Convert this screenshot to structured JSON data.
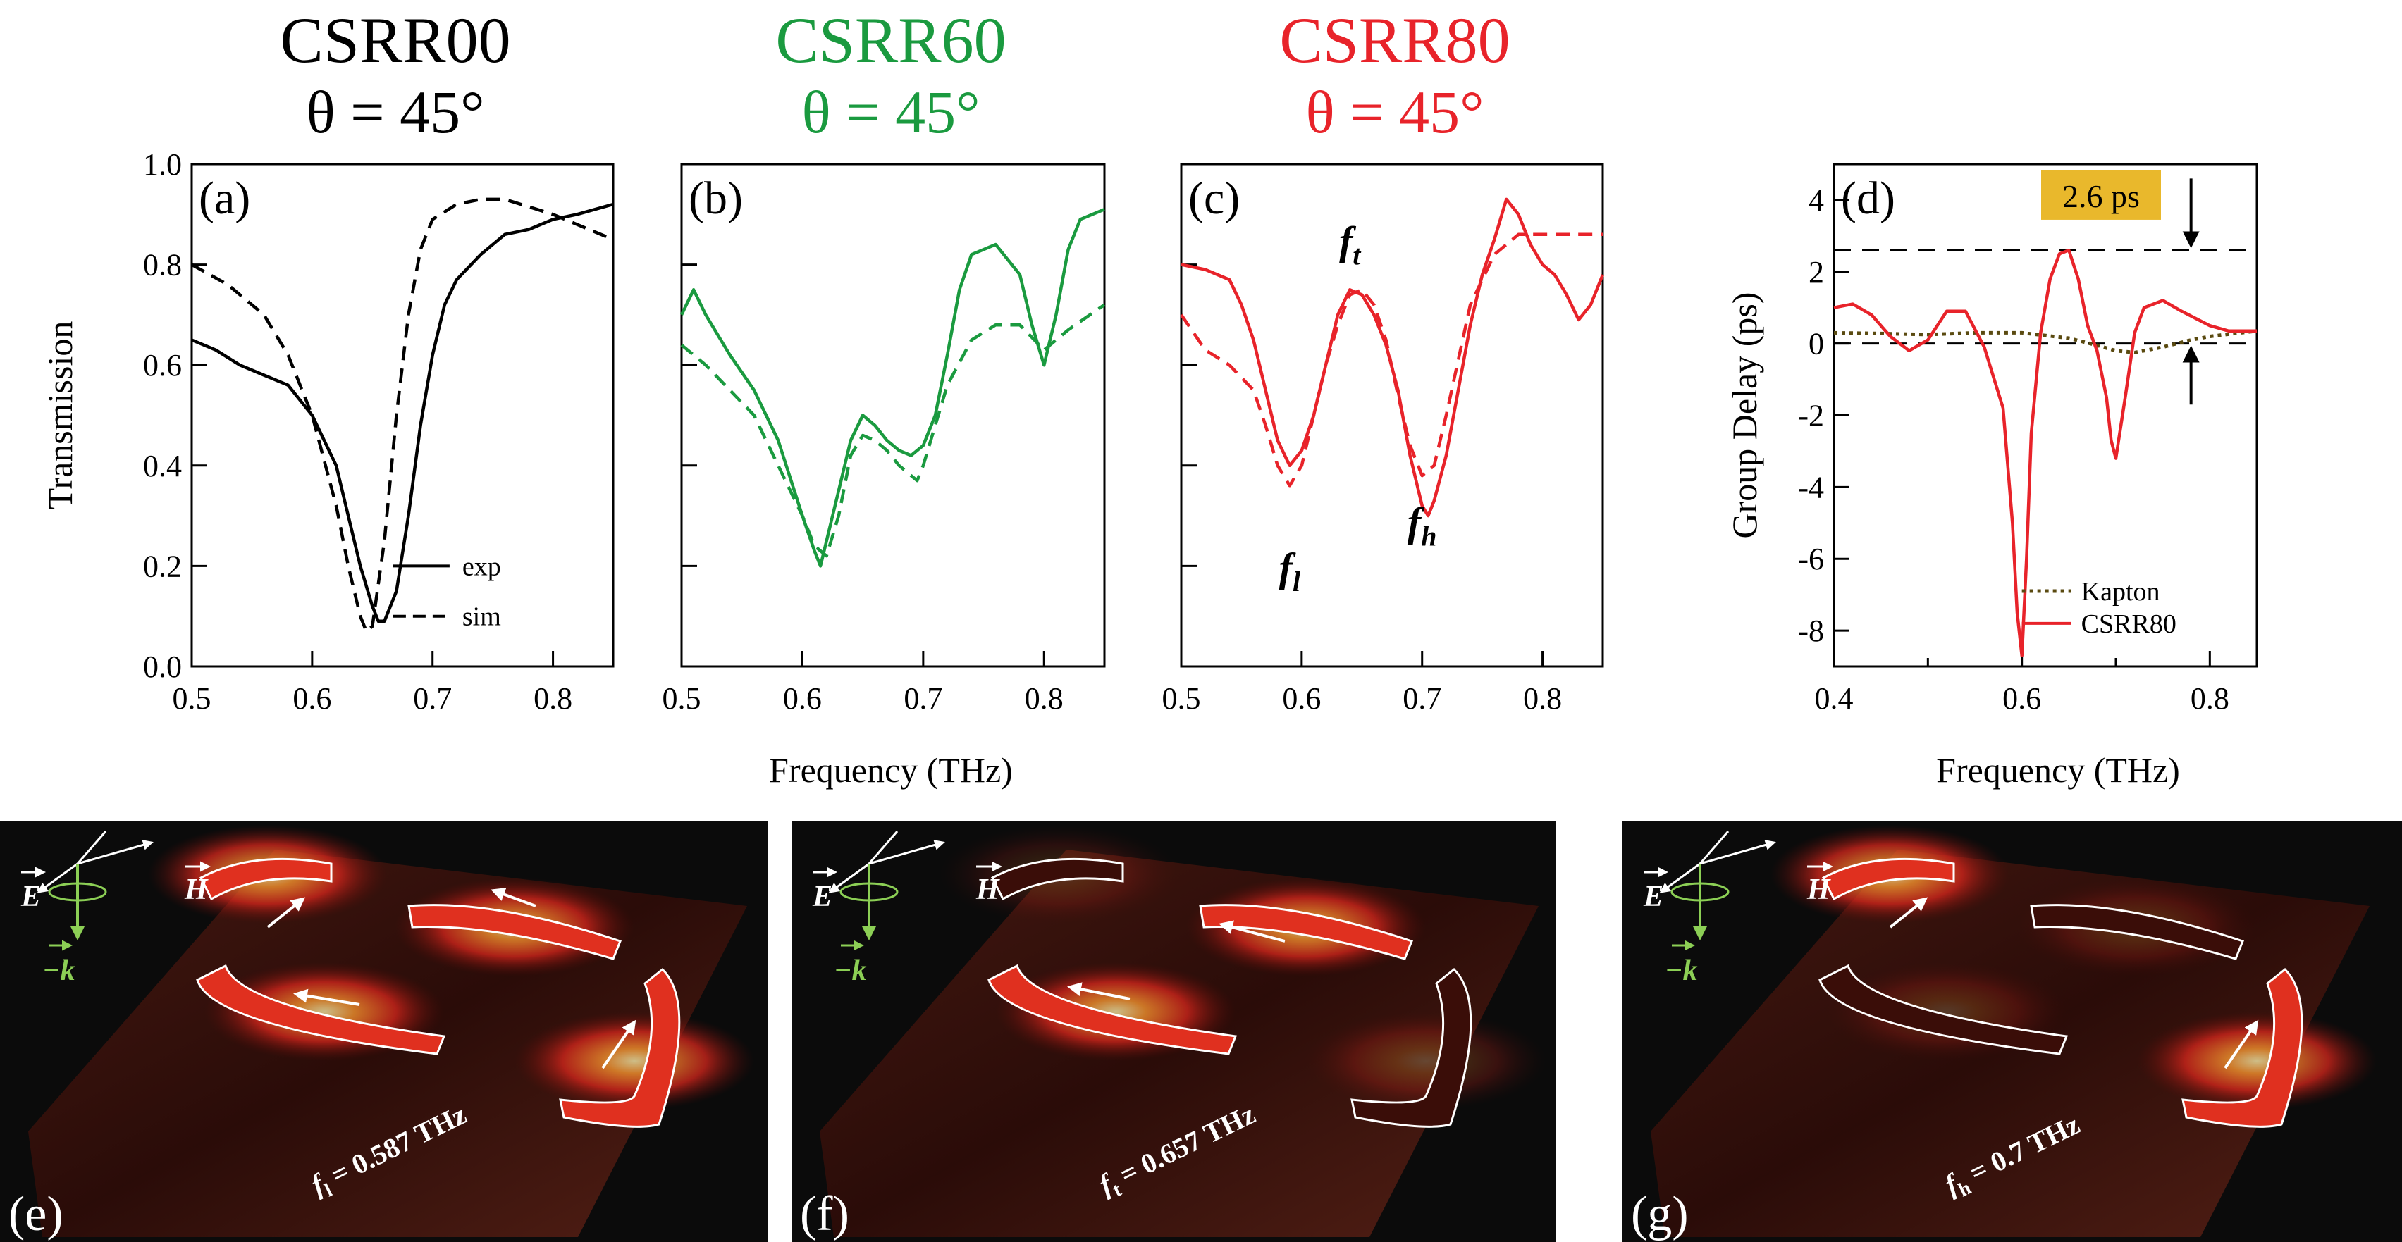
{
  "colors": {
    "black": "#000000",
    "green": "#1a9a3f",
    "red": "#e8232a",
    "olive": "#5a4a10",
    "highlight": "#e9b82c"
  },
  "headers": [
    {
      "name": "CSRR00",
      "theta": "θ = 45°",
      "color": "#000000"
    },
    {
      "name": "CSRR60",
      "theta": "θ = 45°",
      "color": "#1a9a3f"
    },
    {
      "name": "CSRR80",
      "theta": "θ = 45°",
      "color": "#e8232a"
    }
  ],
  "chart_data": [
    {
      "panel": "(a)",
      "type": "line",
      "ylabel": "Transmission",
      "xlim": [
        0.5,
        0.85
      ],
      "ylim": [
        0.0,
        1.0
      ],
      "xticks": [
        "0.5",
        "0.6",
        "0.7",
        "0.8"
      ],
      "yticks": [
        "0.0",
        "0.2",
        "0.4",
        "0.6",
        "0.8",
        "1.0"
      ],
      "legend": {
        "entries": [
          "exp",
          "sim"
        ],
        "position": "bottom-right"
      },
      "series": [
        {
          "name": "exp",
          "style": "solid",
          "x": [
            0.5,
            0.52,
            0.54,
            0.56,
            0.58,
            0.6,
            0.62,
            0.63,
            0.64,
            0.65,
            0.655,
            0.66,
            0.67,
            0.68,
            0.69,
            0.7,
            0.71,
            0.72,
            0.74,
            0.76,
            0.78,
            0.8,
            0.82,
            0.85
          ],
          "y": [
            0.65,
            0.63,
            0.6,
            0.58,
            0.56,
            0.5,
            0.4,
            0.3,
            0.2,
            0.12,
            0.09,
            0.09,
            0.15,
            0.3,
            0.48,
            0.62,
            0.72,
            0.77,
            0.82,
            0.86,
            0.87,
            0.89,
            0.9,
            0.92
          ]
        },
        {
          "name": "sim",
          "style": "dashed",
          "x": [
            0.5,
            0.53,
            0.56,
            0.58,
            0.6,
            0.62,
            0.63,
            0.64,
            0.645,
            0.65,
            0.66,
            0.67,
            0.68,
            0.69,
            0.7,
            0.72,
            0.74,
            0.76,
            0.8,
            0.85
          ],
          "y": [
            0.8,
            0.76,
            0.7,
            0.62,
            0.5,
            0.32,
            0.2,
            0.1,
            0.07,
            0.08,
            0.25,
            0.5,
            0.7,
            0.83,
            0.89,
            0.92,
            0.93,
            0.93,
            0.9,
            0.85
          ]
        }
      ]
    },
    {
      "panel": "(b)",
      "type": "line",
      "xlim": [
        0.5,
        0.85
      ],
      "ylim": [
        0.0,
        1.0
      ],
      "xticks": [
        "0.5",
        "0.6",
        "0.7",
        "0.8"
      ],
      "series": [
        {
          "style": "solid",
          "x": [
            0.5,
            0.51,
            0.52,
            0.54,
            0.56,
            0.58,
            0.6,
            0.61,
            0.615,
            0.62,
            0.63,
            0.64,
            0.65,
            0.66,
            0.67,
            0.68,
            0.69,
            0.7,
            0.71,
            0.72,
            0.73,
            0.74,
            0.76,
            0.78,
            0.79,
            0.8,
            0.81,
            0.82,
            0.83,
            0.85
          ],
          "y": [
            0.7,
            0.75,
            0.7,
            0.62,
            0.55,
            0.45,
            0.3,
            0.23,
            0.2,
            0.25,
            0.35,
            0.45,
            0.5,
            0.48,
            0.45,
            0.43,
            0.42,
            0.44,
            0.5,
            0.62,
            0.75,
            0.82,
            0.84,
            0.78,
            0.68,
            0.6,
            0.7,
            0.83,
            0.89,
            0.91
          ]
        },
        {
          "style": "dashed",
          "x": [
            0.5,
            0.52,
            0.54,
            0.56,
            0.58,
            0.6,
            0.61,
            0.62,
            0.63,
            0.64,
            0.65,
            0.66,
            0.67,
            0.68,
            0.69,
            0.695,
            0.7,
            0.71,
            0.72,
            0.74,
            0.76,
            0.78,
            0.8,
            0.82,
            0.85
          ],
          "y": [
            0.64,
            0.6,
            0.55,
            0.5,
            0.4,
            0.3,
            0.24,
            0.22,
            0.3,
            0.42,
            0.46,
            0.45,
            0.43,
            0.4,
            0.38,
            0.37,
            0.4,
            0.48,
            0.56,
            0.65,
            0.68,
            0.68,
            0.63,
            0.67,
            0.72
          ]
        }
      ]
    },
    {
      "panel": "(c)",
      "type": "line",
      "xlim": [
        0.5,
        0.85
      ],
      "ylim": [
        0.0,
        1.0
      ],
      "xticks": [
        "0.5",
        "0.6",
        "0.7",
        "0.8"
      ],
      "annotations": [
        {
          "main": "f",
          "sub": "t",
          "x": 0.64,
          "y": 0.82
        },
        {
          "main": "f",
          "sub": "l",
          "x": 0.59,
          "y": 0.17
        },
        {
          "main": "f",
          "sub": "h",
          "x": 0.7,
          "y": 0.26
        }
      ],
      "series": [
        {
          "style": "solid",
          "x": [
            0.5,
            0.52,
            0.54,
            0.55,
            0.56,
            0.57,
            0.58,
            0.59,
            0.6,
            0.61,
            0.62,
            0.63,
            0.64,
            0.65,
            0.66,
            0.67,
            0.68,
            0.69,
            0.7,
            0.705,
            0.71,
            0.72,
            0.73,
            0.74,
            0.75,
            0.76,
            0.77,
            0.78,
            0.79,
            0.8,
            0.81,
            0.82,
            0.83,
            0.84,
            0.85
          ],
          "y": [
            0.8,
            0.79,
            0.77,
            0.72,
            0.65,
            0.55,
            0.45,
            0.4,
            0.43,
            0.5,
            0.6,
            0.7,
            0.75,
            0.74,
            0.7,
            0.64,
            0.55,
            0.42,
            0.32,
            0.3,
            0.33,
            0.42,
            0.55,
            0.68,
            0.78,
            0.85,
            0.93,
            0.9,
            0.84,
            0.8,
            0.78,
            0.74,
            0.69,
            0.72,
            0.78
          ]
        },
        {
          "style": "dashed",
          "x": [
            0.5,
            0.52,
            0.54,
            0.56,
            0.57,
            0.58,
            0.59,
            0.6,
            0.61,
            0.62,
            0.63,
            0.64,
            0.65,
            0.66,
            0.67,
            0.68,
            0.69,
            0.7,
            0.71,
            0.72,
            0.74,
            0.76,
            0.78,
            0.8,
            0.82,
            0.85
          ],
          "y": [
            0.7,
            0.63,
            0.6,
            0.55,
            0.48,
            0.4,
            0.36,
            0.4,
            0.5,
            0.6,
            0.68,
            0.74,
            0.75,
            0.72,
            0.65,
            0.54,
            0.44,
            0.38,
            0.4,
            0.5,
            0.72,
            0.82,
            0.86,
            0.86,
            0.86,
            0.86
          ]
        }
      ]
    },
    {
      "panel": "(d)",
      "type": "line",
      "ylabel": "Group Delay (ps)",
      "xlim": [
        0.4,
        0.85
      ],
      "ylim": [
        -9,
        5
      ],
      "xticks": [
        "0.4",
        "0.6",
        "0.8"
      ],
      "yticks": [
        "-8",
        "-6",
        "-4",
        "-2",
        "0",
        "2",
        "4"
      ],
      "hlines": [
        2.6,
        0
      ],
      "callout": "2.6 ps",
      "legend": {
        "entries": [
          "Kapton",
          "CSRR80"
        ],
        "position": "bottom-right"
      },
      "series": [
        {
          "name": "Kapton",
          "style": "dotted",
          "x": [
            0.4,
            0.45,
            0.5,
            0.55,
            0.6,
            0.65,
            0.68,
            0.7,
            0.72,
            0.75,
            0.78,
            0.8,
            0.85
          ],
          "y": [
            0.3,
            0.28,
            0.25,
            0.3,
            0.3,
            0.15,
            -0.05,
            -0.2,
            -0.25,
            -0.1,
            0.1,
            0.2,
            0.35
          ]
        },
        {
          "name": "CSRR80",
          "style": "solid",
          "x": [
            0.4,
            0.42,
            0.44,
            0.46,
            0.48,
            0.5,
            0.52,
            0.54,
            0.56,
            0.58,
            0.59,
            0.595,
            0.6,
            0.605,
            0.61,
            0.62,
            0.63,
            0.64,
            0.65,
            0.66,
            0.67,
            0.68,
            0.69,
            0.695,
            0.7,
            0.71,
            0.72,
            0.73,
            0.75,
            0.77,
            0.8,
            0.82,
            0.85
          ],
          "y": [
            1.0,
            1.1,
            0.8,
            0.2,
            -0.2,
            0.1,
            0.9,
            0.9,
            -0.1,
            -1.8,
            -5.0,
            -7.5,
            -8.7,
            -6.0,
            -2.5,
            0.3,
            1.8,
            2.5,
            2.6,
            1.8,
            0.5,
            -0.2,
            -1.5,
            -2.7,
            -3.2,
            -1.5,
            0.3,
            1.0,
            1.2,
            0.9,
            0.5,
            0.35,
            0.35
          ]
        }
      ]
    }
  ],
  "field_maps": [
    {
      "letter": "(e)",
      "freq_main": "f",
      "freq_sub": "l",
      "freq_value": " = 0.587 THz",
      "E": "E",
      "H": "H",
      "k": "−k"
    },
    {
      "letter": "(f)",
      "freq_main": "f",
      "freq_sub": "t",
      "freq_value": " = 0.657 THz",
      "E": "E",
      "H": "H",
      "k": "−k"
    },
    {
      "letter": "(g)",
      "freq_main": "f",
      "freq_sub": "h",
      "freq_value": " = 0.7 THz",
      "E": "E",
      "H": "H",
      "k": "−k"
    }
  ],
  "xlabel_shared": "Frequency (THz)",
  "xlabel_d": "Frequency (THz)"
}
